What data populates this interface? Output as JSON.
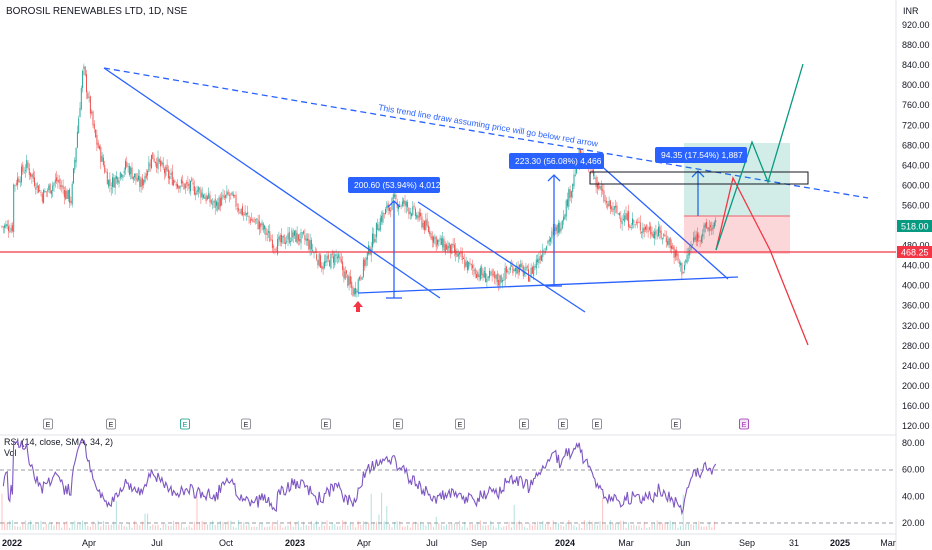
{
  "header": {
    "title": "BOROSIL RENEWABLES LTD, 1D, NSE",
    "currency": "INR"
  },
  "chart_data": {
    "type": "candlestick",
    "title": "BOROSIL RENEWABLES LTD, 1D, NSE",
    "ylim": [
      120,
      940
    ],
    "price_ticks": [
      "920.00",
      "880.00",
      "840.00",
      "800.00",
      "760.00",
      "720.00",
      "680.00",
      "640.00",
      "600.00",
      "560.00",
      "520.00",
      "480.00",
      "440.00",
      "400.00",
      "360.00",
      "320.00",
      "280.00",
      "240.00",
      "200.00",
      "160.00",
      "120.00"
    ],
    "x_ticks": [
      "2022",
      "Apr",
      "Jul",
      "Oct",
      "2023",
      "Apr",
      "Jul",
      "Sep",
      "2024",
      "Mar",
      "Jun",
      "Sep",
      "31",
      "2025",
      "Mar"
    ],
    "price_path": [
      [
        "2022-01-03",
        600
      ],
      [
        "2022-01-20",
        640
      ],
      [
        "2022-02-10",
        580
      ],
      [
        "2022-03-01",
        610
      ],
      [
        "2022-03-20",
        570
      ],
      [
        "2022-04-05",
        835
      ],
      [
        "2022-04-20",
        700
      ],
      [
        "2022-05-10",
        600
      ],
      [
        "2022-06-01",
        640
      ],
      [
        "2022-06-20",
        600
      ],
      [
        "2022-07-05",
        660
      ],
      [
        "2022-07-25",
        620
      ],
      [
        "2022-08-15",
        600
      ],
      [
        "2022-09-05",
        590
      ],
      [
        "2022-09-25",
        560
      ],
      [
        "2022-10-15",
        580
      ],
      [
        "2022-11-05",
        540
      ],
      [
        "2022-11-25",
        520
      ],
      [
        "2022-12-15",
        480
      ],
      [
        "2023-01-05",
        500
      ],
      [
        "2023-01-25",
        490
      ],
      [
        "2023-02-15",
        440
      ],
      [
        "2023-03-05",
        460
      ],
      [
        "2023-03-28",
        385
      ],
      [
        "2023-04-15",
        460
      ],
      [
        "2023-05-01",
        530
      ],
      [
        "2023-05-20",
        570
      ],
      [
        "2023-06-05",
        560
      ],
      [
        "2023-06-25",
        530
      ],
      [
        "2023-07-15",
        490
      ],
      [
        "2023-08-05",
        470
      ],
      [
        "2023-08-25",
        440
      ],
      [
        "2023-09-15",
        420
      ],
      [
        "2023-10-05",
        410
      ],
      [
        "2023-10-25",
        440
      ],
      [
        "2023-11-15",
        420
      ],
      [
        "2023-12-05",
        480
      ],
      [
        "2023-12-25",
        520
      ],
      [
        "2024-01-10",
        600
      ],
      [
        "2024-01-20",
        660
      ],
      [
        "2024-02-05",
        630
      ],
      [
        "2024-02-25",
        560
      ],
      [
        "2024-03-15",
        540
      ],
      [
        "2024-04-05",
        520
      ],
      [
        "2024-04-25",
        510
      ],
      [
        "2024-05-15",
        495
      ],
      [
        "2024-06-04",
        430
      ],
      [
        "2024-06-20",
        495
      ],
      [
        "2024-07-10",
        518
      ]
    ],
    "current_price": "518.00",
    "support_level": "468.25",
    "annotations": [
      "200.60 (53.94%) 4,012",
      "223.30 (56.08%) 4,466",
      "94.35 (17.54%) 1,887",
      "This trend line draw assuming price will go below red arrow"
    ],
    "events": [
      "E",
      "E",
      "E",
      "E",
      "E",
      "E",
      "E",
      "E",
      "E",
      "E",
      "E",
      "E",
      "E"
    ]
  },
  "rsi": {
    "label": "RSI (14, close, SMA, 34, 2)",
    "vol_label": "Vol",
    "ticks": [
      "80.00",
      "60.00",
      "40.00",
      "20.00"
    ],
    "ylim": [
      15,
      85
    ],
    "levels": [
      70,
      30
    ]
  },
  "colors": {
    "up": "#26a69a",
    "down": "#ef5350",
    "trend": "#2962ff",
    "support": "#f23645",
    "rsi": "#7e57c2",
    "target": "#089981"
  }
}
